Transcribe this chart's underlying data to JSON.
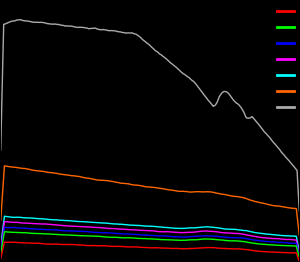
{
  "background_color": "#000000",
  "figure_size": [
    3.0,
    2.62
  ],
  "dpi": 100,
  "lines": [
    {
      "color": "#ff0000",
      "label": "red"
    },
    {
      "color": "#00ff00",
      "label": "green"
    },
    {
      "color": "#0000ff",
      "label": "blue"
    },
    {
      "color": "#ff00ff",
      "label": "magenta"
    },
    {
      "color": "#00ffff",
      "label": "cyan"
    },
    {
      "color": "#ff6600",
      "label": "orange"
    },
    {
      "color": "#aaaaaa",
      "label": "gray"
    }
  ],
  "legend_colors_order": [
    0,
    1,
    2,
    3,
    4,
    5,
    6
  ],
  "xlim": [
    0,
    1
  ],
  "ylim": [
    0.0,
    1.0
  ]
}
